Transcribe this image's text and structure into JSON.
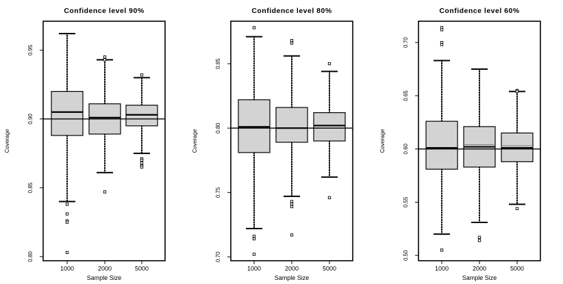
{
  "chart_data": [
    {
      "type": "boxplot",
      "title": "Confidence level 90%",
      "xlabel": "Sample Size",
      "ylabel": "Coverage",
      "categories": [
        "1000",
        "2000",
        "5000"
      ],
      "yticks": [
        "0.80",
        "0.85",
        "0.90",
        "0.95"
      ],
      "ylim": [
        0.797,
        0.971
      ],
      "reference_line": 0.9,
      "boxes": [
        {
          "lower_whisker": 0.84,
          "q1": 0.888,
          "median": 0.905,
          "mean": 0.9,
          "q3": 0.92,
          "upper_whisker": 0.962,
          "outliers": [
            0.838,
            0.831,
            0.826,
            0.825,
            0.803
          ]
        },
        {
          "lower_whisker": 0.861,
          "q1": 0.889,
          "median": 0.901,
          "mean": 0.9,
          "q3": 0.911,
          "upper_whisker": 0.943,
          "outliers": [
            0.945,
            0.943,
            0.847
          ]
        },
        {
          "lower_whisker": 0.875,
          "q1": 0.895,
          "median": 0.903,
          "mean": 0.9,
          "q3": 0.91,
          "upper_whisker": 0.93,
          "outliers": [
            0.932,
            0.871,
            0.87,
            0.868,
            0.866,
            0.865
          ]
        }
      ]
    },
    {
      "type": "boxplot",
      "title": "Confidence level 80%",
      "xlabel": "Sample Size",
      "ylabel": "Coverage",
      "categories": [
        "1000",
        "2000",
        "5000"
      ],
      "yticks": [
        "0.70",
        "0.75",
        "0.80",
        "0.85"
      ],
      "ylim": [
        0.697,
        0.883
      ],
      "reference_line": 0.8,
      "boxes": [
        {
          "lower_whisker": 0.722,
          "q1": 0.781,
          "median": 0.801,
          "mean": 0.8,
          "q3": 0.822,
          "upper_whisker": 0.871,
          "outliers": [
            0.878,
            0.716,
            0.714,
            0.702
          ]
        },
        {
          "lower_whisker": 0.747,
          "q1": 0.789,
          "median": 0.8,
          "mean": 0.8,
          "q3": 0.816,
          "upper_whisker": 0.856,
          "outliers": [
            0.868,
            0.866,
            0.743,
            0.741,
            0.739,
            0.717
          ]
        },
        {
          "lower_whisker": 0.762,
          "q1": 0.79,
          "median": 0.802,
          "mean": 0.8,
          "q3": 0.812,
          "upper_whisker": 0.844,
          "outliers": [
            0.85,
            0.746
          ]
        }
      ]
    },
    {
      "type": "boxplot",
      "title": "Confidence level 60%",
      "xlabel": "Sample Size",
      "ylabel": "Coverage",
      "categories": [
        "1000",
        "2000",
        "5000"
      ],
      "yticks": [
        "0.50",
        "0.55",
        "0.60",
        "0.65",
        "0.70"
      ],
      "ylim": [
        0.495,
        0.72
      ],
      "reference_line": 0.6,
      "boxes": [
        {
          "lower_whisker": 0.52,
          "q1": 0.581,
          "median": 0.601,
          "mean": 0.6,
          "q3": 0.626,
          "upper_whisker": 0.683,
          "outliers": [
            0.714,
            0.712,
            0.7,
            0.698,
            0.505
          ]
        },
        {
          "lower_whisker": 0.531,
          "q1": 0.583,
          "median": 0.602,
          "mean": 0.604,
          "q3": 0.621,
          "upper_whisker": 0.675,
          "outliers": [
            0.517,
            0.514
          ]
        },
        {
          "lower_whisker": 0.548,
          "q1": 0.588,
          "median": 0.601,
          "mean": 0.603,
          "q3": 0.615,
          "upper_whisker": 0.654,
          "outliers": [
            0.655,
            0.654,
            0.544
          ]
        }
      ]
    }
  ]
}
